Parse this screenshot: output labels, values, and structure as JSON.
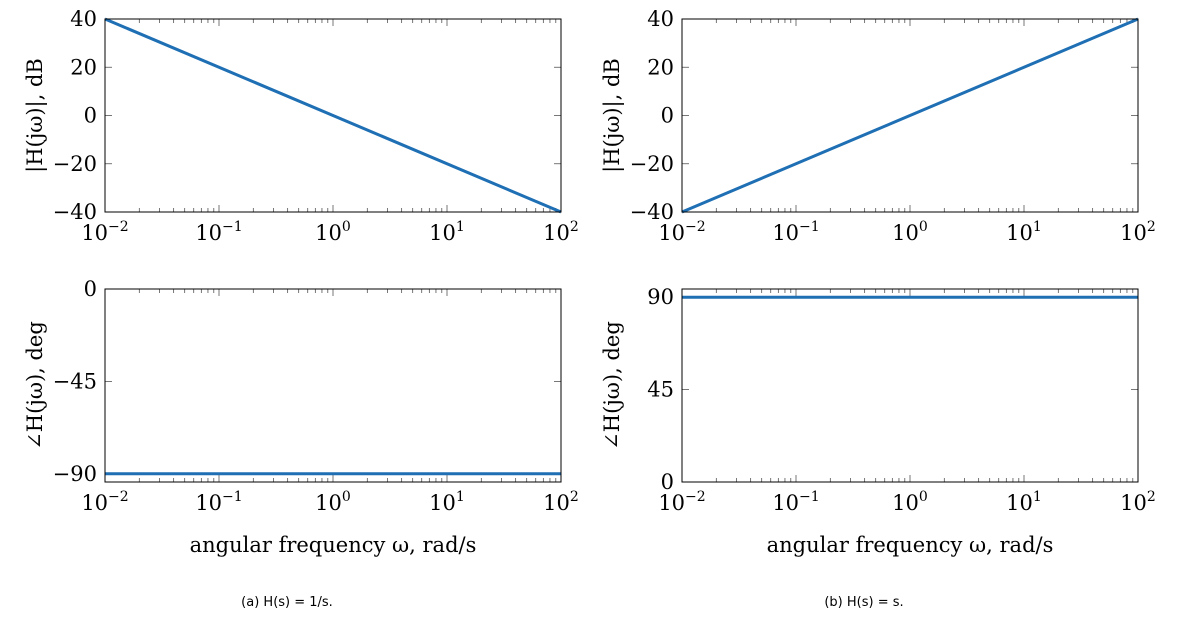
{
  "chart_data": [
    {
      "type": "line",
      "ylabel": "|H(jω)|, dB",
      "xlabel": "",
      "xscale": "log",
      "xlim": [
        0.01,
        100
      ],
      "ylim": [
        -40,
        40
      ],
      "xticks": [
        0.01,
        0.1,
        1,
        10,
        100
      ],
      "xtick_labels": [
        [
          "10",
          "−2"
        ],
        [
          "10",
          "−1"
        ],
        [
          "10",
          "0"
        ],
        [
          "10",
          "1"
        ],
        [
          "10",
          "2"
        ]
      ],
      "yticks": [
        -40,
        -20,
        0,
        20,
        40
      ],
      "ytick_labels": [
        "−40",
        "−20",
        "0",
        "20",
        "40"
      ],
      "grid": false,
      "series": [
        {
          "x": [
            0.01,
            100
          ],
          "y": [
            40,
            -40
          ],
          "color": "#1f6fb4"
        }
      ]
    },
    {
      "type": "line",
      "ylabel": "|H(jω)|, dB",
      "xlabel": "",
      "xscale": "log",
      "xlim": [
        0.01,
        100
      ],
      "ylim": [
        -40,
        40
      ],
      "xticks": [
        0.01,
        0.1,
        1,
        10,
        100
      ],
      "xtick_labels": [
        [
          "10",
          "−2"
        ],
        [
          "10",
          "−1"
        ],
        [
          "10",
          "0"
        ],
        [
          "10",
          "1"
        ],
        [
          "10",
          "2"
        ]
      ],
      "yticks": [
        -40,
        -20,
        0,
        20,
        40
      ],
      "ytick_labels": [
        "−40",
        "−20",
        "0",
        "20",
        "40"
      ],
      "grid": false,
      "series": [
        {
          "x": [
            0.01,
            100
          ],
          "y": [
            -40,
            40
          ],
          "color": "#1f6fb4"
        }
      ]
    },
    {
      "type": "line",
      "ylabel": "∠H(jω), deg",
      "xlabel": "angular frequency ω, rad/s",
      "xscale": "log",
      "xlim": [
        0.01,
        100
      ],
      "ylim": [
        -94,
        0
      ],
      "xticks": [
        0.01,
        0.1,
        1,
        10,
        100
      ],
      "xtick_labels": [
        [
          "10",
          "−2"
        ],
        [
          "10",
          "−1"
        ],
        [
          "10",
          "0"
        ],
        [
          "10",
          "1"
        ],
        [
          "10",
          "2"
        ]
      ],
      "yticks": [
        -90,
        -45,
        0
      ],
      "ytick_labels": [
        "−90",
        "−45",
        "0"
      ],
      "grid": false,
      "series": [
        {
          "x": [
            0.01,
            100
          ],
          "y": [
            -90,
            -90
          ],
          "color": "#1f6fb4"
        }
      ]
    },
    {
      "type": "line",
      "ylabel": "∠H(jω), deg",
      "xlabel": "angular frequency ω, rad/s",
      "xscale": "log",
      "xlim": [
        0.01,
        100
      ],
      "ylim": [
        0,
        94
      ],
      "xticks": [
        0.01,
        0.1,
        1,
        10,
        100
      ],
      "xtick_labels": [
        [
          "10",
          "−2"
        ],
        [
          "10",
          "−1"
        ],
        [
          "10",
          "0"
        ],
        [
          "10",
          "1"
        ],
        [
          "10",
          "2"
        ]
      ],
      "yticks": [
        0,
        45,
        90
      ],
      "ytick_labels": [
        "0",
        "45",
        "90"
      ],
      "grid": false,
      "series": [
        {
          "x": [
            0.01,
            100
          ],
          "y": [
            90,
            90
          ],
          "color": "#1f6fb4"
        }
      ]
    }
  ],
  "captions": {
    "left": "(a)  H(s) = 1/s.",
    "right": "(b)  H(s) = s."
  }
}
